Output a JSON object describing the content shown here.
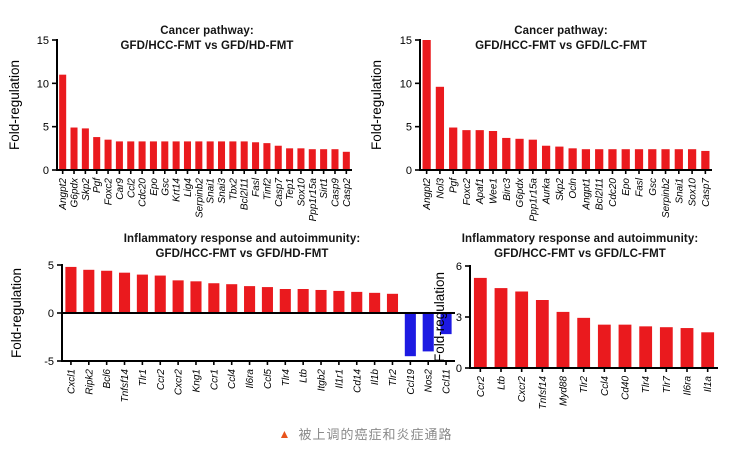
{
  "page": {
    "background": "#ffffff"
  },
  "caption": {
    "icon": "up-triangle",
    "icon_color": "#e8541c",
    "text": "被上调的癌症和炎症通路",
    "text_color": "#8a8a8a"
  },
  "chart_data": [
    {
      "type": "bar",
      "title": "Cancer pathway:",
      "subtitle": "GFD/HCC-FMT vs GFD/HD-FMT",
      "ylabel": "Fold-regulation",
      "xlabel": "",
      "ylim": [
        0,
        15
      ],
      "yticks": [
        0,
        5,
        10,
        15
      ],
      "grid": false,
      "legend": "none",
      "bar_color": "#ea1a1e",
      "negative_bar_color": "#1d1ae2",
      "categories": [
        "Angpt2",
        "G6pdx",
        "Skp2",
        "Pgf",
        "Foxc2",
        "Car9",
        "Ccl2",
        "Cdc20",
        "Epo",
        "Gsc",
        "Krt14",
        "Lig4",
        "Serpinb2",
        "Snai1",
        "Snai3",
        "Tbx2",
        "Bcl2l11",
        "Fasl",
        "Tinf2",
        "Casp7",
        "Tep1",
        "Sox10",
        "Ppp1r15a",
        "Sirt1",
        "Casp9",
        "Casp2"
      ],
      "values": [
        11.0,
        4.9,
        4.8,
        3.8,
        3.5,
        3.3,
        3.3,
        3.3,
        3.3,
        3.3,
        3.3,
        3.3,
        3.3,
        3.3,
        3.3,
        3.3,
        3.3,
        3.2,
        3.1,
        2.8,
        2.5,
        2.5,
        2.4,
        2.4,
        2.4,
        2.1
      ]
    },
    {
      "type": "bar",
      "title": "Cancer pathway:",
      "subtitle": "GFD/HCC-FMT vs GFD/LC-FMT",
      "ylabel": "Fold-regulation",
      "xlabel": "",
      "ylim": [
        0,
        15
      ],
      "yticks": [
        0,
        5,
        10,
        15
      ],
      "grid": false,
      "legend": "none",
      "bar_color": "#ea1a1e",
      "negative_bar_color": "#1d1ae2",
      "categories": [
        "Angpt2",
        "Nol3",
        "Pgf",
        "Foxc2",
        "Apaf1",
        "Wee1",
        "Birc3",
        "G6pdx",
        "Ppp1r15a",
        "Aurka",
        "Skp2",
        "Ocln",
        "Angpt1",
        "Bcl2l11",
        "Cdc20",
        "Epo",
        "Fasl",
        "Gsc",
        "Serpinb2",
        "Snai1",
        "Sox10",
        "Casp7"
      ],
      "values": [
        15.0,
        9.6,
        4.9,
        4.6,
        4.6,
        4.5,
        3.7,
        3.6,
        3.5,
        2.8,
        2.7,
        2.5,
        2.4,
        2.4,
        2.4,
        2.4,
        2.4,
        2.4,
        2.4,
        2.4,
        2.4,
        2.2
      ]
    },
    {
      "type": "bar",
      "title": "Inflammatory response and autoimmunity:",
      "subtitle": "GFD/HCC-FMT vs GFD/HD-FMT",
      "ylabel": "Fold-regulation",
      "xlabel": "",
      "ylim": [
        -5,
        5
      ],
      "yticks": [
        -5,
        0,
        5
      ],
      "grid": false,
      "legend": "none",
      "bar_color": "#ea1a1e",
      "negative_bar_color": "#1d1ae2",
      "categories": [
        "Cxcl1",
        "Ripk2",
        "Bcl6",
        "Tnfsf14",
        "Tlr1",
        "Ccr2",
        "Cxcr2",
        "Kng1",
        "Ccr1",
        "Ccl4",
        "Il6ra",
        "Ccl5",
        "Tlr4",
        "Ltb",
        "Itgb2",
        "Il1r1",
        "Cd14",
        "Il1b",
        "Tlr2",
        "Ccl19",
        "Nos2",
        "Ccl11"
      ],
      "values": [
        4.8,
        4.5,
        4.4,
        4.2,
        4.0,
        3.9,
        3.4,
        3.3,
        3.1,
        3.0,
        2.8,
        2.7,
        2.5,
        2.5,
        2.4,
        2.3,
        2.2,
        2.1,
        2.0,
        -4.5,
        -4.0,
        -2.2
      ]
    },
    {
      "type": "bar",
      "title": "Inflammatory response and autoimmunity:",
      "subtitle": "GFD/HCC-FMT vs GFD/LC-FMT",
      "ylabel": "Fold-regulation",
      "xlabel": "",
      "ylim": [
        0,
        6
      ],
      "yticks": [
        0,
        3,
        6
      ],
      "grid": false,
      "legend": "none",
      "bar_color": "#ea1a1e",
      "negative_bar_color": "#1d1ae2",
      "categories": [
        "Ccr2",
        "Ltb",
        "Cxcr2",
        "Tnfsf14",
        "Myd88",
        "Tlr2",
        "Ccl4",
        "Cd40",
        "Tlr4",
        "Tlr7",
        "Il6ra",
        "Il1a"
      ],
      "values": [
        5.3,
        4.7,
        4.5,
        4.0,
        3.3,
        2.95,
        2.55,
        2.55,
        2.45,
        2.4,
        2.35,
        2.1
      ]
    }
  ]
}
